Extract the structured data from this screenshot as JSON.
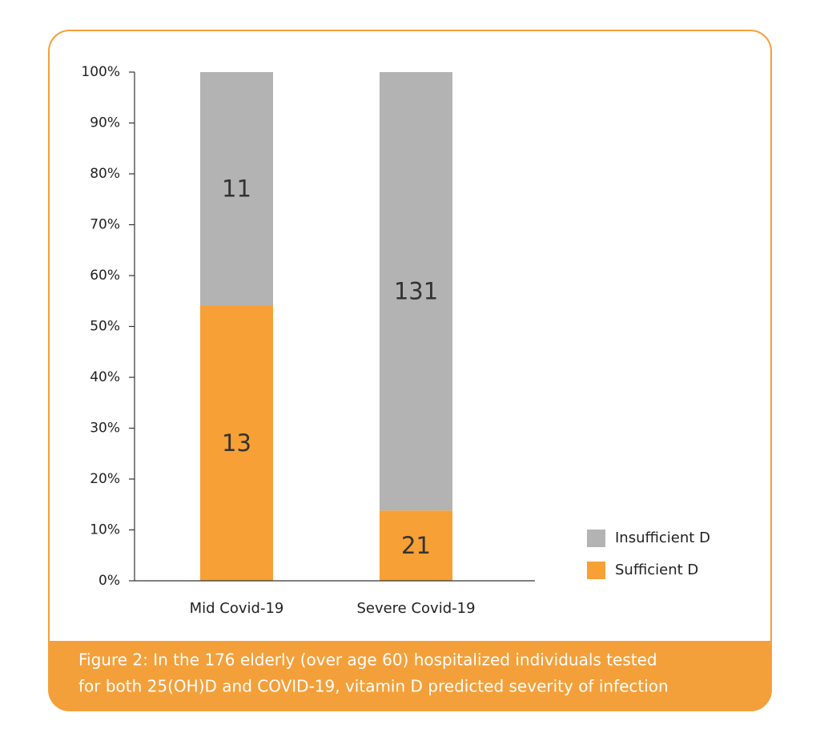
{
  "chart_data": {
    "type": "bar",
    "stacking": "percent",
    "categories": [
      "Mid Covid-19",
      "Severe Covid-19"
    ],
    "series": [
      {
        "name": "Sufficient D",
        "color": "#f7a035",
        "values": [
          13,
          21
        ]
      },
      {
        "name": "Insufficient D",
        "color": "#b3b3b3",
        "values": [
          11,
          131
        ]
      }
    ],
    "ylim": [
      0,
      100
    ],
    "yticks": [
      {
        "value": 0,
        "label": "0%"
      },
      {
        "value": 10,
        "label": "10%"
      },
      {
        "value": 20,
        "label": "20%"
      },
      {
        "value": 30,
        "label": "30%"
      },
      {
        "value": 40,
        "label": "40%"
      },
      {
        "value": 50,
        "label": "50%"
      },
      {
        "value": 60,
        "label": "60%"
      },
      {
        "value": 70,
        "label": "70%"
      },
      {
        "value": 80,
        "label": "80%"
      },
      {
        "value": 90,
        "label": "90%"
      },
      {
        "value": 100,
        "label": "100%"
      }
    ],
    "legend": "right",
    "caption": [
      "Figure 2: In the 176 elderly (over age 60) hospitalized individuals tested",
      "for both 25(OH)D and COVID-19, vitamin D predicted severity of infection"
    ]
  }
}
